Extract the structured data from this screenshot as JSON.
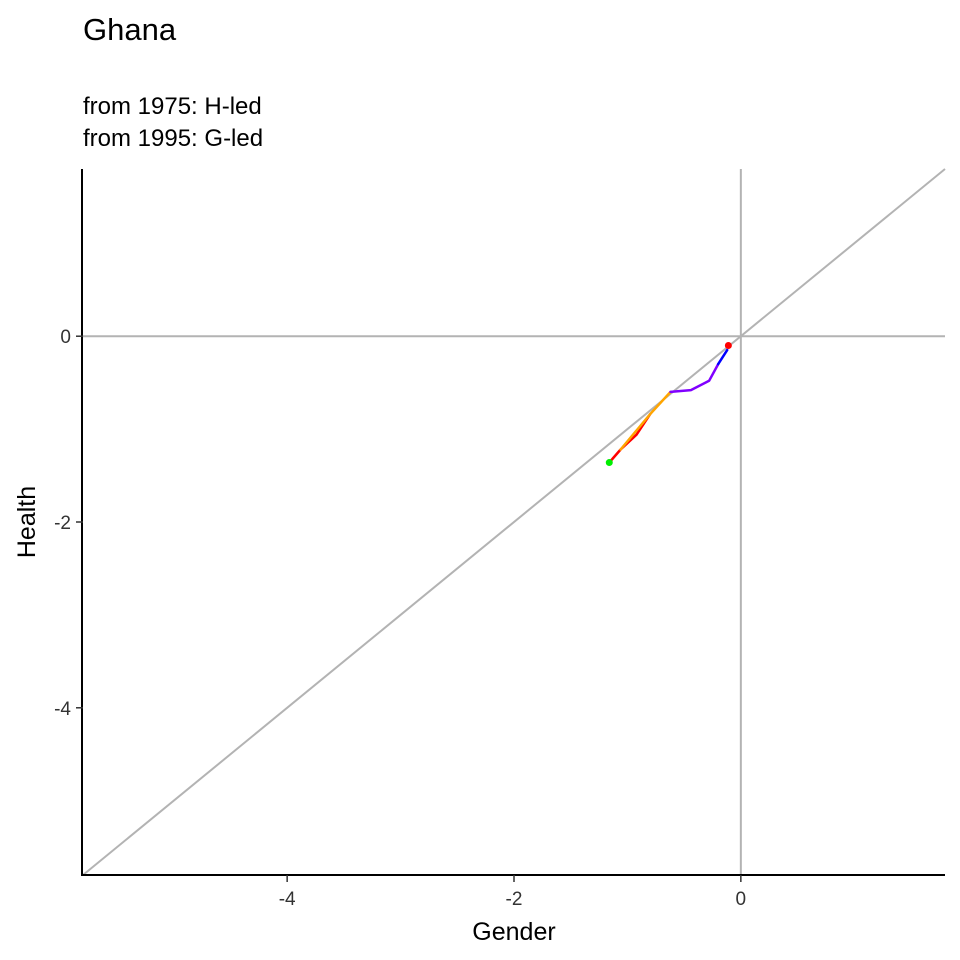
{
  "chart_data": {
    "type": "line",
    "title": "Ghana",
    "subtitle_lines": [
      "from 1975:  H-led",
      "from 1995:  G-led"
    ],
    "xlabel": "Gender",
    "ylabel": "Health",
    "xlim": [
      -5.8,
      1.8
    ],
    "ylim": [
      -5.8,
      1.8
    ],
    "x_ticks": [
      -4,
      -2,
      0
    ],
    "y_ticks": [
      0,
      -2,
      -4
    ],
    "x_tick_labels": [
      "-4",
      "-2",
      "0"
    ],
    "y_tick_labels": [
      "0",
      "-2",
      "-4"
    ],
    "reference_lines": {
      "diagonal": true,
      "x_zero": true,
      "y_zero": true,
      "color": "#b3b3b3"
    },
    "grid": false,
    "series": [
      {
        "color": "#ff0000",
        "points": [
          [
            -1.16,
            -1.36
          ],
          [
            -1.06,
            -1.22
          ],
          [
            -0.92,
            -1.06
          ],
          [
            -0.8,
            -0.84
          ]
        ]
      },
      {
        "color": "#ffa500",
        "points": [
          [
            -1.06,
            -1.22
          ],
          [
            -0.8,
            -0.84
          ],
          [
            -0.62,
            -0.6
          ]
        ]
      },
      {
        "color": "#8000ff",
        "points": [
          [
            -0.62,
            -0.6
          ],
          [
            -0.44,
            -0.58
          ],
          [
            -0.28,
            -0.48
          ],
          [
            -0.2,
            -0.3
          ]
        ]
      },
      {
        "color": "#0000ff",
        "points": [
          [
            -0.2,
            -0.3
          ],
          [
            -0.12,
            -0.15
          ]
        ]
      }
    ],
    "start_point": {
      "x": -1.16,
      "y": -1.36,
      "color": "#00ee00"
    },
    "end_point": {
      "x": -0.11,
      "y": -0.1,
      "color": "#ff0000"
    }
  }
}
